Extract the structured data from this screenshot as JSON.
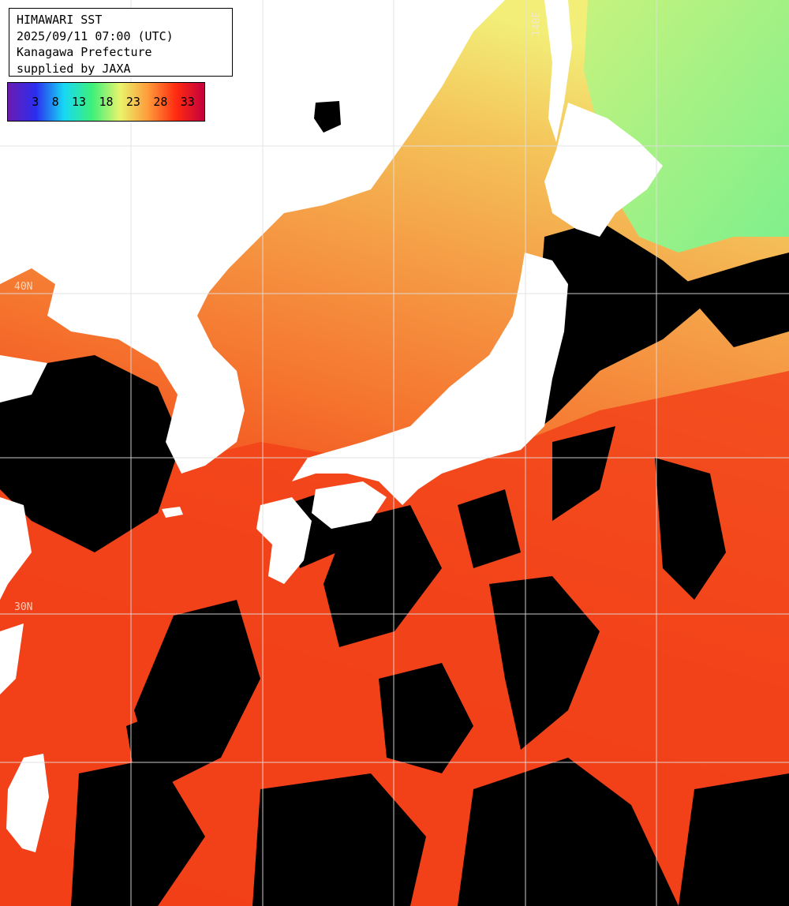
{
  "info": {
    "title": "HIMAWARI SST",
    "datetime": "2025/09/11 07:00 (UTC)",
    "region": "Kanagawa Prefecture",
    "credit": "supplied by JAXA"
  },
  "legend": {
    "ticks": [
      "3",
      "8",
      "13",
      "18",
      "23",
      "28",
      "33"
    ],
    "colors": [
      "#6a1bb0",
      "#2b2ef0",
      "#17d8f5",
      "#3cf07a",
      "#e9f46c",
      "#ff9a3a",
      "#ff2a10",
      "#c4003f"
    ]
  },
  "grid": {
    "lat_labels": [
      "40N",
      "30N"
    ],
    "lon_labels": [
      "140E"
    ]
  },
  "colors": {
    "land": "#ffffff",
    "cloud": "#000000",
    "sea_warm": "#f23a12",
    "sea_mid": "#f57a2e",
    "sea_cool": "#f3c356",
    "sea_cold": "#9ef27a",
    "grid_line": "#d9d9d9"
  }
}
